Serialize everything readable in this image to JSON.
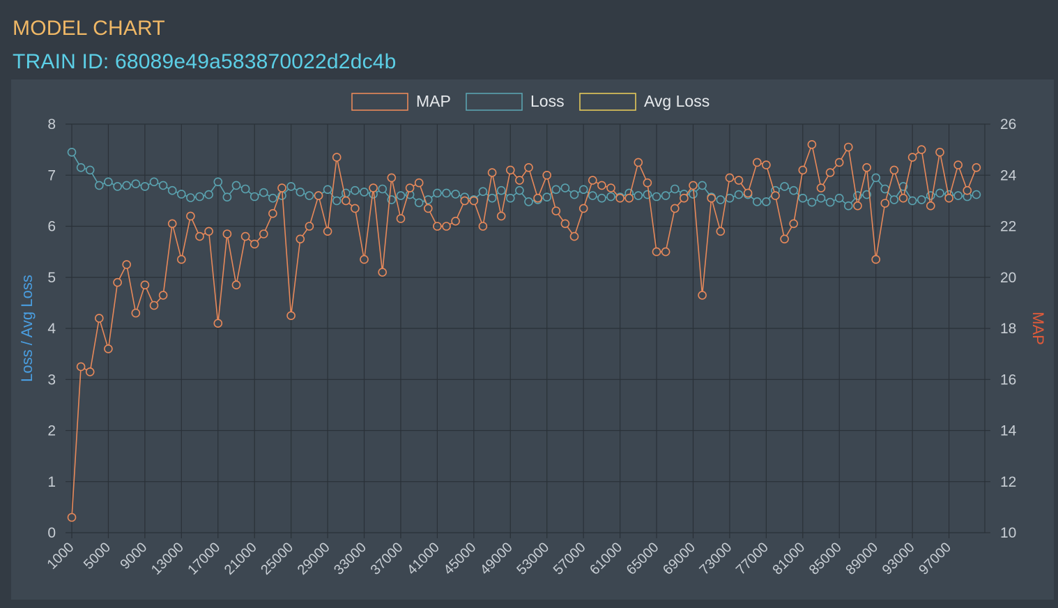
{
  "header": {
    "title": "MODEL CHART",
    "train_label": "TRAIN ID: 68089e49a583870022d2dc4b",
    "title_color": "#f0b866",
    "train_color": "#5ccfe6"
  },
  "chart_data": {
    "type": "line",
    "legend_position": "top-center",
    "grid": true,
    "legend": [
      {
        "name": "MAP",
        "color": "#e8895a"
      },
      {
        "name": "Loss",
        "color": "#5aa3b0"
      },
      {
        "name": "Avg Loss",
        "color": "#e3c95a"
      }
    ],
    "y_left": {
      "label": "Loss / Avg Loss",
      "min": 0,
      "max": 8,
      "ticks": [
        "0",
        "1",
        "2",
        "3",
        "4",
        "5",
        "6",
        "7",
        "8"
      ],
      "color": "#4a9ee0"
    },
    "y_right": {
      "label": "MAP",
      "min": 10,
      "max": 26,
      "ticks": [
        "10",
        "12",
        "14",
        "16",
        "18",
        "20",
        "22",
        "24",
        "26"
      ],
      "color": "#e05a3a"
    },
    "x_tick_labels": [
      "1000",
      "5000",
      "9000",
      "13000",
      "17000",
      "21000",
      "25000",
      "29000",
      "33000",
      "37000",
      "41000",
      "45000",
      "49000",
      "53000",
      "57000",
      "61000",
      "65000",
      "69000",
      "73000",
      "77000",
      "81000",
      "85000",
      "89000",
      "93000",
      "97000"
    ],
    "x_start": 1000,
    "x_step": 1000,
    "series": [
      {
        "name": "MAP",
        "axis": "right",
        "values": [
          10.6,
          16.5,
          16.3,
          18.4,
          17.2,
          19.8,
          20.5,
          18.6,
          19.7,
          18.9,
          19.3,
          22.1,
          20.7,
          22.4,
          21.6,
          21.8,
          18.2,
          21.7,
          19.7,
          21.6,
          21.3,
          21.7,
          22.5,
          23.5,
          18.5,
          21.5,
          22.0,
          23.2,
          21.8,
          24.7,
          23.0,
          22.7,
          20.7,
          23.5,
          20.2,
          23.9,
          22.3,
          23.5,
          23.7,
          22.7,
          22.0,
          22.0,
          22.2,
          23.0,
          23.0,
          22.0,
          24.1,
          22.4,
          24.2,
          23.8,
          24.3,
          23.1,
          24.0,
          22.6,
          22.1,
          21.6,
          22.7,
          23.8,
          23.6,
          23.5,
          23.1,
          23.1,
          24.5,
          23.7,
          21.0,
          21.0,
          22.7,
          23.1,
          23.6,
          19.3,
          23.1,
          21.8,
          23.9,
          23.8,
          23.3,
          24.5,
          24.4,
          23.2,
          21.5,
          22.1,
          24.2,
          25.2,
          23.5,
          24.1,
          24.5,
          25.1,
          22.8,
          24.3,
          20.7,
          22.9,
          24.2,
          23.1,
          24.7,
          25.0,
          22.8,
          24.9,
          23.1,
          24.4,
          23.4,
          24.3
        ]
      },
      {
        "name": "Loss",
        "axis": "left",
        "values": [
          7.45,
          7.15,
          7.1,
          6.8,
          6.87,
          6.78,
          6.8,
          6.83,
          6.78,
          6.87,
          6.8,
          6.7,
          6.63,
          6.56,
          6.58,
          6.62,
          6.87,
          6.57,
          6.8,
          6.73,
          6.58,
          6.66,
          6.55,
          6.6,
          6.78,
          6.67,
          6.6,
          6.6,
          6.72,
          6.5,
          6.65,
          6.7,
          6.67,
          6.63,
          6.73,
          6.52,
          6.6,
          6.62,
          6.46,
          6.52,
          6.65,
          6.65,
          6.63,
          6.57,
          6.52,
          6.68,
          6.55,
          6.7,
          6.55,
          6.7,
          6.48,
          6.52,
          6.57,
          6.72,
          6.75,
          6.62,
          6.72,
          6.6,
          6.55,
          6.58,
          6.57,
          6.65,
          6.6,
          6.62,
          6.58,
          6.6,
          6.73,
          6.63,
          6.63,
          6.8,
          6.57,
          6.52,
          6.55,
          6.62,
          6.62,
          6.48,
          6.48,
          6.7,
          6.78,
          6.7,
          6.55,
          6.47,
          6.55,
          6.47,
          6.55,
          6.4,
          6.6,
          6.62,
          6.95,
          6.73,
          6.52,
          6.78,
          6.5,
          6.52,
          6.6,
          6.65,
          6.62,
          6.6,
          6.58,
          6.62
        ]
      },
      {
        "name": "Avg Loss",
        "axis": "left",
        "values": []
      }
    ]
  }
}
